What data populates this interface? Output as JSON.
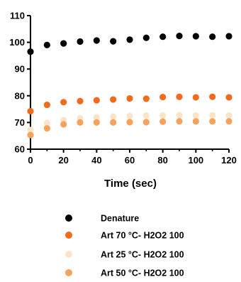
{
  "chart_data": {
    "type": "scatter",
    "title": "",
    "xlabel": "Time (sec)",
    "ylabel": "",
    "xlim": [
      0,
      120
    ],
    "ylim": [
      60,
      110
    ],
    "xticks": [
      0,
      20,
      40,
      60,
      80,
      100,
      120
    ],
    "yticks": [
      60,
      70,
      80,
      90,
      100,
      110
    ],
    "grid": false,
    "legend": "bottom",
    "x": [
      0,
      10,
      20,
      30,
      40,
      50,
      60,
      70,
      80,
      90,
      100,
      110,
      120
    ],
    "series": [
      {
        "name": "Denature",
        "color": "#000000",
        "values": [
          96.5,
          99.0,
          99.6,
          100.3,
          100.7,
          100.4,
          101.0,
          101.7,
          102.1,
          102.4,
          102.3,
          102.1,
          102.3
        ]
      },
      {
        "name": "Art 70 °C- H2O2 100",
        "color": "#f26a1b",
        "values": [
          74.2,
          76.6,
          77.6,
          78.0,
          78.3,
          78.6,
          79.0,
          78.9,
          79.5,
          79.6,
          79.4,
          79.6,
          79.4
        ]
      },
      {
        "name": "Art 25 °C- H2O2 100",
        "color": "#fde3c8",
        "values": [
          67.2,
          69.8,
          70.9,
          71.6,
          71.9,
          72.2,
          72.4,
          72.6,
          72.6,
          72.7,
          72.6,
          72.7,
          72.6
        ]
      },
      {
        "name": "Art 50 °C- H2O2 100",
        "color": "#f5a35c",
        "values": [
          65.3,
          67.8,
          69.3,
          70.0,
          70.0,
          70.0,
          70.1,
          70.1,
          70.3,
          70.4,
          70.4,
          70.4,
          70.4
        ]
      }
    ]
  }
}
